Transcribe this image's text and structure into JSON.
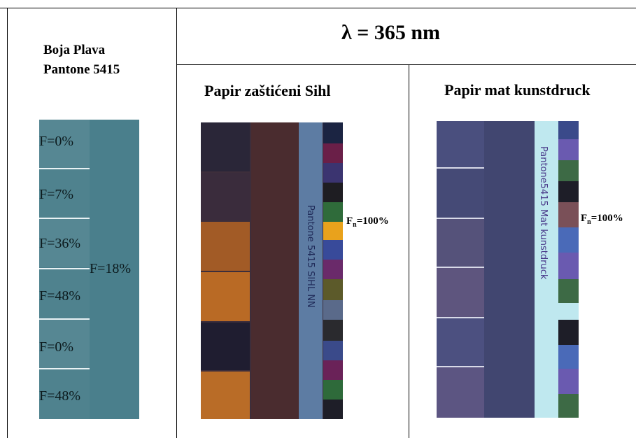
{
  "header": {
    "color_name_line1": "Boja Plava",
    "color_name_line2": "Pantone 5415",
    "wavelength": "λ = 365 nm"
  },
  "columns": {
    "sihl_title": "Papir zaštićeni Sihl",
    "mat_title": "Papir mat kunstdruck"
  },
  "swatch_labels": [
    "F=0%",
    "F=7%",
    "F=36%",
    "F=48%",
    "F=0%",
    "F=48%"
  ],
  "swatch_right_label": "F=18%",
  "fn_label": {
    "main": "F",
    "sub": "n",
    "value": "=100%"
  },
  "colors": {
    "swatch_base": "#4a7f8c",
    "sihl_background": "#3d2e3b",
    "mat_background": "#464a72",
    "fluorescent_orange": "#c0702c"
  }
}
